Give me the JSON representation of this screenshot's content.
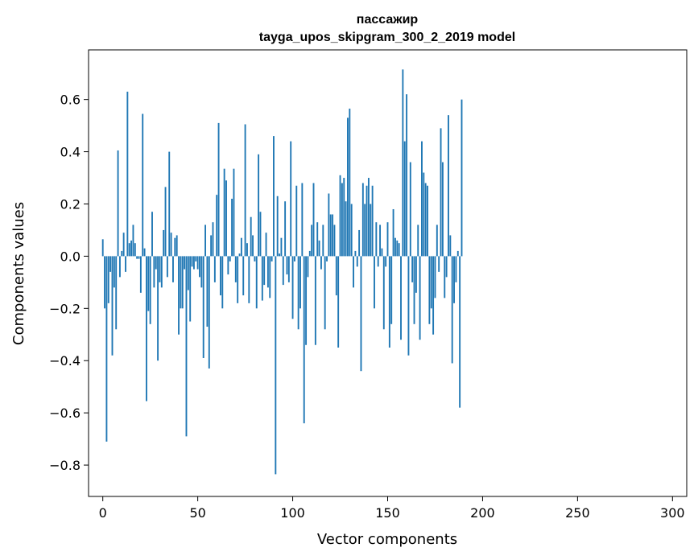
{
  "chart_data": {
    "type": "bar",
    "title": "пассажир",
    "subtitle": "tayga_upos_skipgram_300_2_2019 model",
    "xlabel": "Vector components",
    "ylabel": "Components values",
    "xlim": [
      -7.5,
      307.5
    ],
    "ylim": [
      -0.92,
      0.79
    ],
    "xticks": [
      0,
      50,
      100,
      150,
      200,
      250,
      300
    ],
    "xtick_labels": [
      "0",
      "50",
      "100",
      "150",
      "200",
      "250",
      "300"
    ],
    "yticks": [
      -0.8,
      -0.6,
      -0.4,
      -0.2,
      0.0,
      0.2,
      0.4,
      0.6
    ],
    "ytick_labels": [
      "−0.8",
      "−0.6",
      "−0.4",
      "−0.2",
      "0.0",
      "0.2",
      "0.4",
      "0.6"
    ],
    "color": "#1f77b4",
    "values": [
      0.065,
      -0.2,
      -0.71,
      -0.18,
      -0.06,
      -0.38,
      -0.12,
      -0.28,
      0.405,
      -0.08,
      0.02,
      0.09,
      -0.06,
      0.63,
      0.05,
      0.06,
      0.12,
      0.05,
      -0.01,
      -0.01,
      -0.14,
      0.545,
      0.03,
      -0.555,
      -0.21,
      -0.26,
      0.17,
      -0.12,
      -0.05,
      -0.4,
      -0.1,
      -0.12,
      0.1,
      0.265,
      -0.08,
      0.4,
      0.09,
      -0.1,
      0.07,
      0.08,
      -0.3,
      -0.2,
      -0.2,
      -0.05,
      -0.69,
      -0.13,
      -0.25,
      -0.04,
      -0.05,
      -0.02,
      -0.05,
      -0.08,
      -0.12,
      -0.39,
      0.12,
      -0.27,
      -0.43,
      0.08,
      0.13,
      -0.1,
      0.235,
      0.51,
      -0.15,
      -0.2,
      0.335,
      0.29,
      -0.07,
      -0.02,
      0.22,
      0.335,
      -0.1,
      -0.18,
      0.01,
      0.07,
      -0.15,
      0.505,
      0.05,
      -0.18,
      0.15,
      0.08,
      -0.02,
      -0.2,
      0.39,
      0.17,
      -0.17,
      -0.11,
      0.09,
      -0.12,
      -0.16,
      -0.02,
      0.46,
      -0.835,
      0.23,
      0.01,
      0.07,
      -0.11,
      0.21,
      -0.07,
      -0.1,
      0.44,
      -0.24,
      -0.02,
      0.27,
      -0.28,
      -0.2,
      0.28,
      -0.64,
      -0.34,
      -0.08,
      0.02,
      0.12,
      0.28,
      -0.34,
      0.13,
      0.06,
      -0.05,
      0.12,
      -0.28,
      -0.02,
      0.24,
      0.16,
      0.16,
      0.12,
      -0.15,
      -0.35,
      0.31,
      0.28,
      0.3,
      0.21,
      0.53,
      0.565,
      0.2,
      -0.12,
      0.02,
      -0.04,
      0.1,
      -0.44,
      0.28,
      0.2,
      0.27,
      0.3,
      0.2,
      0.27,
      -0.2,
      0.13,
      -0.04,
      0.12,
      0.03,
      -0.28,
      -0.04,
      0.13,
      -0.35,
      -0.26,
      0.18,
      0.07,
      0.06,
      0.05,
      -0.32,
      0.715,
      0.44,
      0.62,
      -0.38,
      0.36,
      -0.1,
      -0.26,
      -0.14,
      0.12,
      -0.32,
      0.44,
      0.32,
      0.28,
      0.27,
      -0.26,
      -0.2,
      -0.3,
      -0.16,
      0.12,
      -0.06,
      0.49,
      0.36,
      -0.16,
      -0.08,
      0.54,
      0.08,
      -0.41,
      -0.18,
      -0.1,
      0.02,
      -0.58,
      0.6
    ]
  }
}
